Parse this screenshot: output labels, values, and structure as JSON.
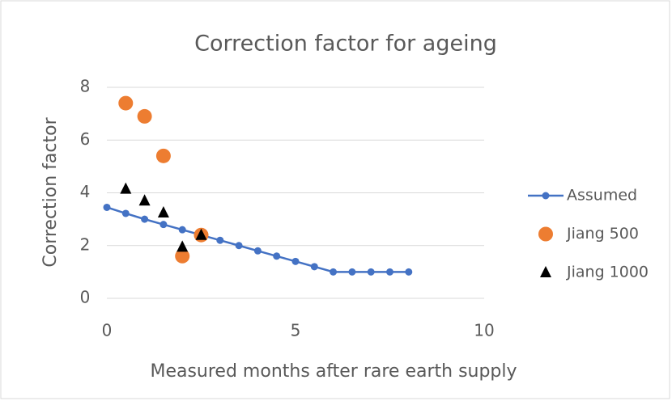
{
  "chart_data": {
    "type": "scatter",
    "title": "Correction factor for ageing",
    "x_label": "Measured months after rare earth supply",
    "y_label": "Correction factor",
    "xlim": [
      0,
      10
    ],
    "xticks": [
      0,
      5,
      10
    ],
    "ylim": [
      0,
      8
    ],
    "yticks": [
      0,
      2,
      4,
      6,
      8
    ],
    "grid": true,
    "legend": "right",
    "series": [
      {
        "name": "Assumed",
        "color": "#4472c4",
        "marker": "circle",
        "line": true,
        "x": [
          0,
          0.5,
          1,
          1.5,
          2,
          2.5,
          3,
          3.5,
          4,
          4.5,
          5,
          5.5,
          6,
          6.5,
          7,
          7.5,
          8
        ],
        "values": [
          3.45,
          3.22,
          3.0,
          2.8,
          2.6,
          2.4,
          2.2,
          2.0,
          1.8,
          1.6,
          1.4,
          1.2,
          1.0,
          1.0,
          1.0,
          1.0,
          1.0
        ]
      },
      {
        "name": "Jiang 500",
        "color": "#ed7d31",
        "marker": "big-circle",
        "line": false,
        "x": [
          0.5,
          1,
          1.5,
          2,
          2.5
        ],
        "values": [
          7.4,
          6.9,
          5.4,
          1.6,
          2.4
        ]
      },
      {
        "name": "Jiang 1000",
        "color": "#000000",
        "marker": "triangle",
        "line": false,
        "x": [
          0.5,
          1,
          1.5,
          2,
          2.5
        ],
        "values": [
          4.15,
          3.7,
          3.25,
          1.95,
          2.4
        ]
      }
    ]
  }
}
